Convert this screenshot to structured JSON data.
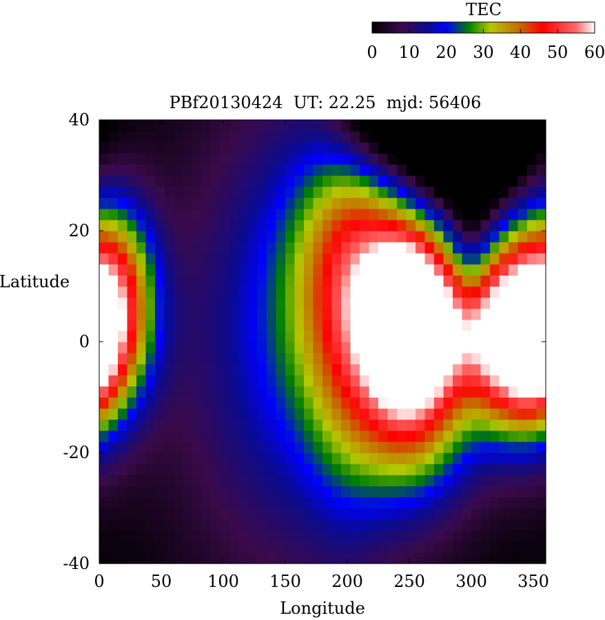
{
  "chart_data": {
    "type": "heatmap",
    "title": "PBf20130424  UT: 22.25  mjd: 56406",
    "xlabel": "Longitude",
    "ylabel": "Latitude",
    "xlim": [
      0,
      360
    ],
    "ylim": [
      -40,
      40
    ],
    "x_ticks": [
      0,
      50,
      100,
      150,
      200,
      250,
      300,
      350
    ],
    "y_ticks": [
      -40,
      -20,
      0,
      20,
      40
    ],
    "grid": false,
    "colorbar": {
      "label": "TEC",
      "range": [
        0,
        60
      ],
      "ticks": [
        0,
        10,
        20,
        30,
        40,
        50,
        60
      ],
      "placement": "top-right",
      "stops": [
        {
          "value": 0,
          "color": "#000000"
        },
        {
          "value": 8,
          "color": "#3a0a4a"
        },
        {
          "value": 15,
          "color": "#0a0a90"
        },
        {
          "value": 20,
          "color": "#0000ff"
        },
        {
          "value": 26,
          "color": "#008000"
        },
        {
          "value": 32,
          "color": "#b4c800"
        },
        {
          "value": 40,
          "color": "#c86400"
        },
        {
          "value": 46,
          "color": "#ff0000"
        },
        {
          "value": 55,
          "color": "#ff6a6a"
        },
        {
          "value": 60,
          "color": "#ffffff"
        }
      ]
    },
    "resolution": {
      "dlon": 7.5,
      "dlat": 2.0
    },
    "features": [
      {
        "type": "gauss",
        "lon": 0,
        "lat": 4,
        "amp": 40,
        "slon": 30,
        "slat": 12
      },
      {
        "type": "gauss",
        "lon": 0,
        "lat": 22,
        "amp": 6,
        "slon": 20,
        "slat": 8
      },
      {
        "type": "gauss",
        "lon": 25,
        "lat": 14,
        "amp": 10,
        "slon": 18,
        "slat": 10
      },
      {
        "type": "gauss",
        "lon": 250,
        "lat": 4,
        "amp": 58,
        "slon": 22,
        "slat": 9
      },
      {
        "type": "gauss",
        "lon": 240,
        "lat": 8,
        "amp": 25,
        "slon": 60,
        "slat": 22
      },
      {
        "type": "gauss",
        "lon": 255,
        "lat": -12,
        "amp": 25,
        "slon": 32,
        "slat": 12
      },
      {
        "type": "gauss",
        "lon": 220,
        "lat": 15,
        "amp": 15,
        "slon": 40,
        "slat": 15
      },
      {
        "type": "gauss",
        "lon": 340,
        "lat": 0,
        "amp": 45,
        "slon": 28,
        "slat": 12
      },
      {
        "type": "gauss",
        "lon": 355,
        "lat": 1,
        "amp": 15,
        "slon": 10,
        "slat": 6
      },
      {
        "type": "gauss",
        "lon": 300,
        "lat": 2,
        "amp": 15,
        "slon": 30,
        "slat": 8
      },
      {
        "type": "gauss",
        "lon": 300,
        "lat": 20,
        "amp": -12,
        "slon": 12,
        "slat": 10
      },
      {
        "type": "gauss",
        "lon": 290,
        "lat": 38,
        "amp": -40,
        "slon": 35,
        "slat": 10
      },
      {
        "type": "gauss",
        "lon": 230,
        "lat": 44,
        "amp": -25,
        "slon": 30,
        "slat": 10
      },
      {
        "type": "gauss",
        "lon": 200,
        "lat": 0,
        "amp": 10,
        "slon": 25,
        "slat": 25
      }
    ],
    "baseline": {
      "lon": 150,
      "slon": 95,
      "amp": 16,
      "lat_scale": 45
    }
  }
}
